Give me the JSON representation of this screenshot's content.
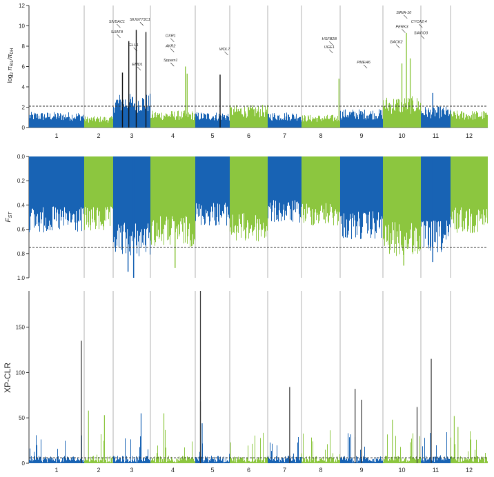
{
  "colors": {
    "blue": "#1863b4",
    "green": "#8cc63f",
    "gene_line": "#c0392b",
    "threshold": "#333333",
    "separator": "#b0b0b0"
  },
  "chart_data": [
    {
      "type": "bar",
      "panel": "top",
      "ylabel_main": "log",
      "ylabel_sub1": "2",
      "ylabel_mid": " π",
      "ylabel_sub2": "RIL",
      "ylabel_mid2": "/π",
      "ylabel_sub3": "DH",
      "ylim": [
        0,
        12
      ],
      "yticks": [
        "0",
        "2",
        "4",
        "6",
        "8",
        "10",
        "12"
      ],
      "threshold": 2.1,
      "grid": false,
      "chromosomes": [
        "1",
        "2",
        "3",
        "4",
        "5",
        "6",
        "7",
        "8",
        "9",
        "10",
        "11",
        "12"
      ],
      "chromosome_colors": [
        "blue",
        "green",
        "blue",
        "green",
        "blue",
        "green",
        "blue",
        "green",
        "blue",
        "green",
        "blue",
        "green"
      ],
      "baseline_level": [
        1.1,
        0.8,
        2.4,
        1.2,
        1.1,
        1.6,
        1.1,
        0.9,
        1.3,
        2.2,
        1.5,
        1.2
      ],
      "peaks": [
        {
          "chr": "3",
          "pos": 0.25,
          "value": 5.4
        },
        {
          "chr": "3",
          "pos": 0.42,
          "value": 8.5
        },
        {
          "chr": "3",
          "pos": 0.62,
          "value": 9.6
        },
        {
          "chr": "3",
          "pos": 0.88,
          "value": 9.4
        },
        {
          "chr": "4",
          "pos": 0.78,
          "value": 6.0
        },
        {
          "chr": "4",
          "pos": 0.82,
          "value": 5.3
        },
        {
          "chr": "5",
          "pos": 0.72,
          "value": 5.2
        },
        {
          "chr": "8",
          "pos": 0.97,
          "value": 4.8
        },
        {
          "chr": "10",
          "pos": 0.5,
          "value": 6.3
        },
        {
          "chr": "10",
          "pos": 0.62,
          "value": 9.3
        },
        {
          "chr": "10",
          "pos": 0.72,
          "value": 6.8
        },
        {
          "chr": "11",
          "pos": 0.4,
          "value": 3.4
        }
      ],
      "gene_labels": [
        {
          "text": "SlVDAC1",
          "chr": "3",
          "pos": 0.1,
          "value": 10.3
        },
        {
          "text": "SlUGT73C1",
          "chr": "3",
          "pos": 0.72,
          "value": 10.5
        },
        {
          "text": "SlJAT8",
          "chr": "3",
          "pos": 0.1,
          "value": 9.3
        },
        {
          "text": "GLU1",
          "chr": "3",
          "pos": 0.55,
          "value": 8.0
        },
        {
          "text": "EMD1",
          "chr": "3",
          "pos": 0.65,
          "value": 6.1
        },
        {
          "text": "OXR1",
          "chr": "4",
          "pos": 0.45,
          "value": 8.9
        },
        {
          "text": "AKR2",
          "chr": "4",
          "pos": 0.45,
          "value": 7.9
        },
        {
          "text": "Sppam1",
          "chr": "4",
          "pos": 0.45,
          "value": 6.5
        },
        {
          "text": "WDL7",
          "chr": "5",
          "pos": 0.85,
          "value": 7.6
        },
        {
          "text": "HSFB2B",
          "chr": "8",
          "pos": 0.72,
          "value": 8.6
        },
        {
          "text": "UGE1",
          "chr": "8",
          "pos": 0.72,
          "value": 7.8
        },
        {
          "text": "PMEI46",
          "chr": "9",
          "pos": 0.55,
          "value": 6.3
        },
        {
          "text": "SlRIA-10",
          "chr": "10",
          "pos": 0.55,
          "value": 11.2
        },
        {
          "text": "CYCA2;4",
          "chr": "10",
          "pos": 0.95,
          "value": 10.3
        },
        {
          "text": "PERK3",
          "chr": "10",
          "pos": 0.5,
          "value": 9.8
        },
        {
          "text": "SlAGO3",
          "chr": "10",
          "pos": 1.0,
          "value": 9.2
        },
        {
          "text": "GACK2",
          "chr": "10",
          "pos": 0.35,
          "value": 8.3
        }
      ]
    },
    {
      "type": "bar",
      "panel": "middle",
      "ylabel_main": "F",
      "ylabel_sub": "ST",
      "ylim": [
        0,
        1
      ],
      "inverted": true,
      "yticks": [
        "0.0",
        "0.2",
        "0.4",
        "0.6",
        "0.8",
        "1.0"
      ],
      "threshold": 0.75,
      "chromosomes": [
        "1",
        "2",
        "3",
        "4",
        "5",
        "6",
        "7",
        "8",
        "9",
        "10",
        "11",
        "12"
      ],
      "baseline_level": [
        0.55,
        0.55,
        0.72,
        0.65,
        0.5,
        0.62,
        0.48,
        0.5,
        0.6,
        0.72,
        0.7,
        0.55
      ],
      "extremes": [
        {
          "chr": "3",
          "pos": 0.4,
          "value": 0.95
        },
        {
          "chr": "3",
          "pos": 0.55,
          "value": 1.0
        },
        {
          "chr": "4",
          "pos": 0.55,
          "value": 0.92
        },
        {
          "chr": "10",
          "pos": 0.55,
          "value": 0.9
        },
        {
          "chr": "11",
          "pos": 0.4,
          "value": 0.87
        }
      ]
    },
    {
      "type": "bar",
      "panel": "bottom",
      "ylabel": "XP-CLR",
      "ylim": [
        0,
        190
      ],
      "yticks": [
        "0",
        "50",
        "100",
        "150"
      ],
      "threshold": 6,
      "chromosomes": [
        "1",
        "2",
        "3",
        "4",
        "5",
        "6",
        "7",
        "8",
        "9",
        "10",
        "11",
        "12"
      ],
      "peaks": [
        {
          "chr": "1",
          "pos": 0.95,
          "value": 135
        },
        {
          "chr": "5",
          "pos": 0.15,
          "value": 190
        },
        {
          "chr": "5",
          "pos": 0.15,
          "value": 68
        },
        {
          "chr": "5",
          "pos": 0.2,
          "value": 44
        },
        {
          "chr": "7",
          "pos": 0.65,
          "value": 84
        },
        {
          "chr": "9",
          "pos": 0.35,
          "value": 82
        },
        {
          "chr": "9",
          "pos": 0.5,
          "value": 70
        },
        {
          "chr": "11",
          "pos": 0.35,
          "value": 115
        },
        {
          "chr": "10",
          "pos": 0.25,
          "value": 48
        },
        {
          "chr": "3",
          "pos": 0.75,
          "value": 55
        },
        {
          "chr": "2",
          "pos": 0.15,
          "value": 58
        },
        {
          "chr": "2",
          "pos": 0.7,
          "value": 53
        },
        {
          "chr": "4",
          "pos": 0.3,
          "value": 55
        },
        {
          "chr": "10",
          "pos": 0.9,
          "value": 62
        },
        {
          "chr": "12",
          "pos": 0.1,
          "value": 52
        },
        {
          "chr": "12",
          "pos": 0.2,
          "value": 40
        }
      ]
    }
  ]
}
